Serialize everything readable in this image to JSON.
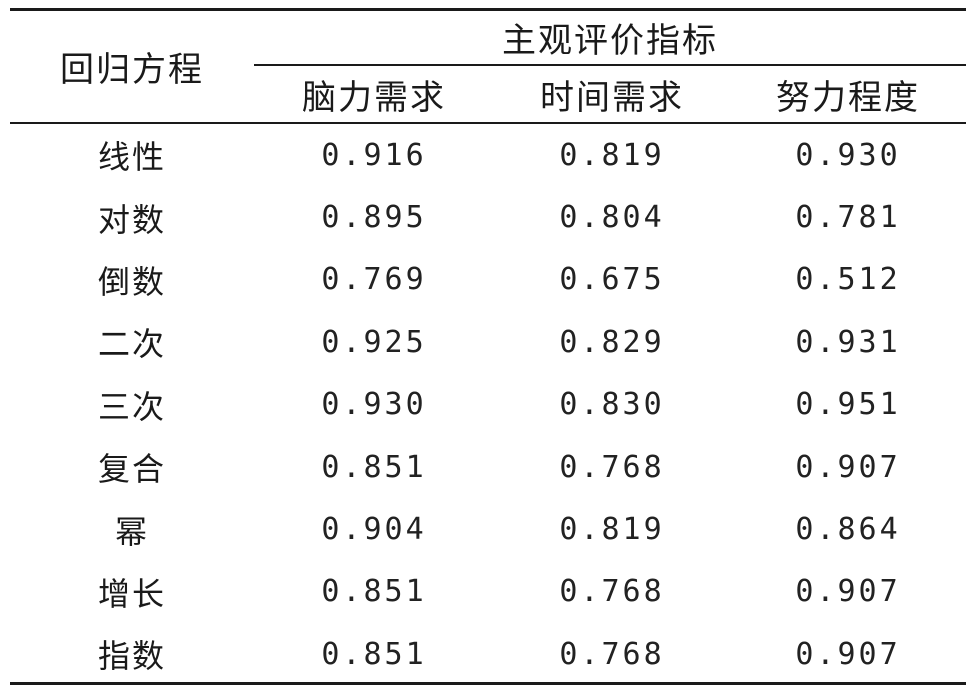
{
  "table": {
    "stub_header": "回归方程",
    "group_header": "主观评价指标",
    "columns": [
      "脑力需求",
      "时间需求",
      "努力程度"
    ],
    "rows": [
      {
        "label": "线性",
        "values": [
          "0.916",
          "0.819",
          "0.930"
        ]
      },
      {
        "label": "对数",
        "values": [
          "0.895",
          "0.804",
          "0.781"
        ]
      },
      {
        "label": "倒数",
        "values": [
          "0.769",
          "0.675",
          "0.512"
        ]
      },
      {
        "label": "二次",
        "values": [
          "0.925",
          "0.829",
          "0.931"
        ]
      },
      {
        "label": "三次",
        "values": [
          "0.930",
          "0.830",
          "0.951"
        ]
      },
      {
        "label": "复合",
        "values": [
          "0.851",
          "0.768",
          "0.907"
        ]
      },
      {
        "label": "幂",
        "values": [
          "0.904",
          "0.819",
          "0.864"
        ]
      },
      {
        "label": "增长",
        "values": [
          "0.851",
          "0.768",
          "0.907"
        ]
      },
      {
        "label": "指数",
        "values": [
          "0.851",
          "0.768",
          "0.907"
        ]
      }
    ]
  }
}
